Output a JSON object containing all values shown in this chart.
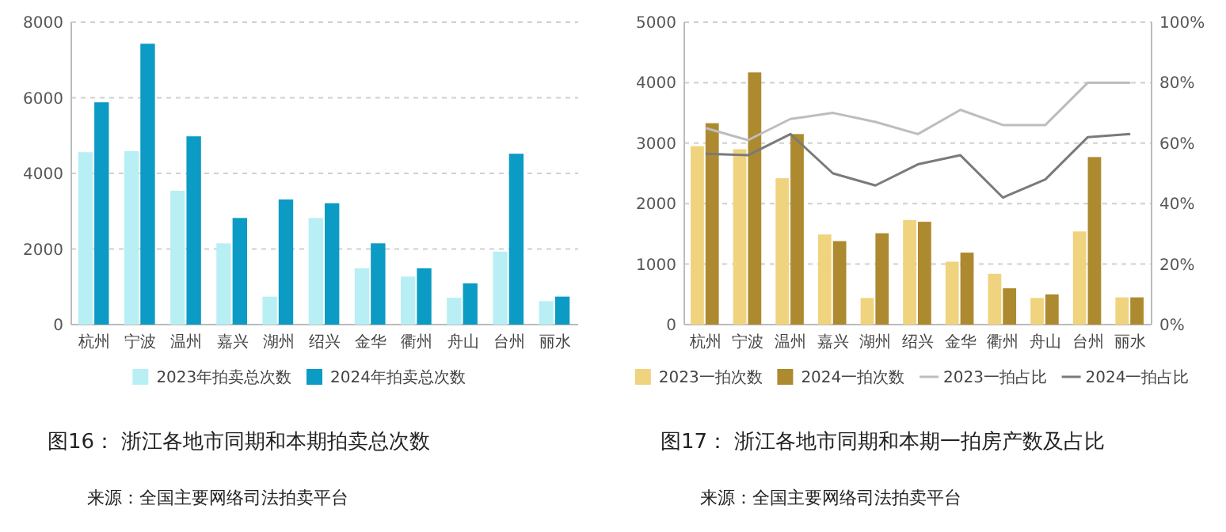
{
  "chart_data": [
    {
      "type": "bar",
      "title": "图16： 浙江各地市同期和本期拍卖总次数",
      "annotations": [
        "来源：全国主要网络司法拍卖平台"
      ],
      "categories": [
        "杭州",
        "宁波",
        "温州",
        "嘉兴",
        "湖州",
        "绍兴",
        "金华",
        "衢州",
        "舟山",
        "台州",
        "丽水"
      ],
      "series": [
        {
          "name": "2023年拍卖总次数",
          "color": "#b8eff5",
          "values": [
            4560,
            4590,
            3540,
            2150,
            740,
            2820,
            1490,
            1270,
            710,
            1930,
            620
          ]
        },
        {
          "name": "2024年拍卖总次数",
          "color": "#0b9bc4",
          "values": [
            5880,
            7430,
            4980,
            2820,
            3310,
            3210,
            2150,
            1490,
            1090,
            4520,
            740
          ]
        }
      ],
      "ylim": [
        0,
        8000
      ],
      "yticks": [
        0,
        2000,
        4000,
        6000,
        8000
      ],
      "grid": "y",
      "legend": "bottom"
    },
    {
      "type": "bar",
      "title": "图17： 浙江各地市同期和本期一拍房产数及占比",
      "annotations": [
        "来源：全国主要网络司法拍卖平台"
      ],
      "categories": [
        "杭州",
        "宁波",
        "温州",
        "嘉兴",
        "湖州",
        "绍兴",
        "金华",
        "衢州",
        "舟山",
        "台州",
        "丽水"
      ],
      "series": [
        {
          "name": "2023一拍次数",
          "color": "#f0d37e",
          "values": [
            2950,
            2900,
            2420,
            1490,
            440,
            1730,
            1040,
            840,
            440,
            1540,
            450
          ]
        },
        {
          "name": "2024一拍次数",
          "color": "#ad8a2f",
          "values": [
            3330,
            4170,
            3150,
            1380,
            1510,
            1700,
            1190,
            600,
            500,
            2770,
            450
          ]
        },
        {
          "name": "2023一拍占比",
          "type": "line",
          "axis": "y2",
          "color": "#bdbdbd",
          "values": [
            65,
            61,
            68,
            70,
            67,
            63,
            71,
            66,
            66,
            80,
            80
          ]
        },
        {
          "name": "2024一拍占比",
          "type": "line",
          "axis": "y2",
          "color": "#7a7a7a",
          "values": [
            56.5,
            56,
            63,
            50,
            46,
            53,
            56,
            42,
            48,
            62,
            63
          ]
        }
      ],
      "ylim": [
        0,
        5000
      ],
      "yticks": [
        0,
        1000,
        2000,
        3000,
        4000,
        5000
      ],
      "y2lim": [
        0,
        100
      ],
      "y2ticks": [
        {
          "value": 0,
          "label": "0%"
        },
        {
          "value": 20,
          "label": "20%"
        },
        {
          "value": 40,
          "label": "40%"
        },
        {
          "value": 60,
          "label": "60%"
        },
        {
          "value": 80,
          "label": "80%"
        },
        {
          "value": 100,
          "label": "100%"
        }
      ],
      "grid": "y",
      "legend": "bottom"
    }
  ]
}
